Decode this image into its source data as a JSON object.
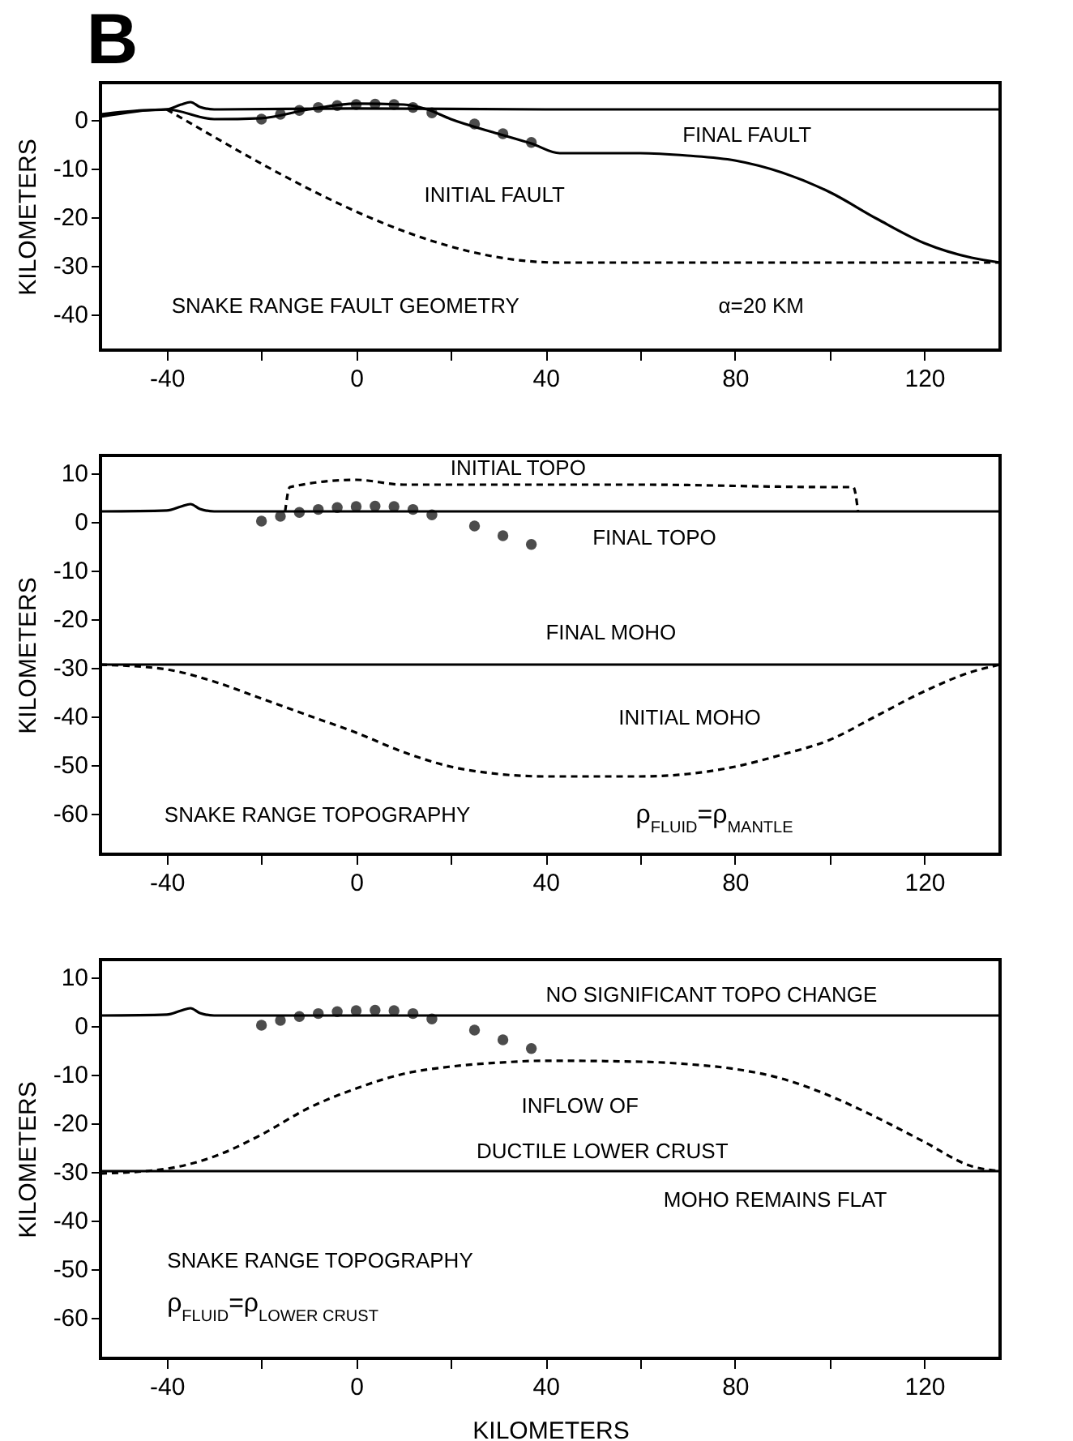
{
  "chart_data": [
    {
      "type": "line",
      "title": "B",
      "ylabel": "KILOMETERS",
      "xlim": [
        -54,
        136
      ],
      "ylim": [
        -47.5,
        7.5
      ],
      "xticks": [
        -40,
        {
          "value": -20,
          "label": null
        },
        0,
        {
          "value": 20,
          "label": null
        },
        40,
        {
          "value": 60,
          "label": null
        },
        80,
        {
          "value": 100,
          "label": null
        },
        120
      ],
      "yticks": [
        0,
        -10,
        -20,
        -30,
        -40
      ],
      "grid": false,
      "series": [
        {
          "type": "line",
          "color": "#000000",
          "line_style": "solid",
          "x": [
            -54,
            -45,
            -40,
            -37,
            -35,
            -33,
            -30,
            0,
            40,
            80,
            136
          ],
          "values": [
            1,
            1.8,
            2,
            3,
            3.5,
            2.5,
            2,
            2.2,
            2,
            2,
            2
          ]
        },
        {
          "type": "line",
          "name": "FINAL FAULT",
          "color": "#000000",
          "line_style": "solid",
          "x": [
            -54,
            -40,
            -30,
            -20,
            -10,
            0,
            10,
            15,
            20,
            30,
            37,
            43,
            60,
            70,
            80,
            90,
            100,
            110,
            120,
            130,
            136
          ],
          "values": [
            0.5,
            2,
            0,
            0.2,
            2,
            3.2,
            3,
            2,
            0,
            -3,
            -5,
            -7,
            -7,
            -7.5,
            -8.5,
            -11,
            -15,
            -20.5,
            -25.5,
            -28.5,
            -29.5
          ]
        },
        {
          "type": "line",
          "name": "INITIAL FAULT",
          "color": "#000000",
          "line_style": "dashed",
          "x": [
            -40,
            43,
            136
          ],
          "values": [
            2,
            -29.5,
            -29.5
          ]
        },
        {
          "type": "scatter",
          "color": "#000000",
          "marker": "circle",
          "x": [
            -20,
            -16,
            -12,
            -8,
            -4,
            0,
            4,
            8,
            12,
            16,
            25,
            31,
            37
          ],
          "values": [
            0,
            1,
            1.8,
            2.4,
            2.8,
            3,
            3.1,
            3,
            2.4,
            1.3,
            -1,
            -3,
            -4.8
          ]
        }
      ],
      "annotations": [
        "SNAKE RANGE FAULT GEOMETRY",
        "α=20 KM"
      ]
    },
    {
      "type": "line",
      "ylabel": "KILOMETERS",
      "xlim": [
        -54,
        136
      ],
      "ylim": [
        -68.5,
        13.5
      ],
      "xticks": [
        -40,
        {
          "value": -20,
          "label": null
        },
        0,
        {
          "value": 20,
          "label": null
        },
        40,
        {
          "value": 60,
          "label": null
        },
        80,
        {
          "value": 100,
          "label": null
        },
        120
      ],
      "yticks": [
        10,
        0,
        -10,
        -20,
        -30,
        -40,
        -50,
        -60
      ],
      "grid": false,
      "series": [
        {
          "type": "line",
          "name": "FINAL TOPO",
          "color": "#000000",
          "line_style": "solid",
          "x": [
            -54,
            -40,
            -37,
            -35,
            -33,
            -30,
            0,
            136
          ],
          "values": [
            2,
            2.2,
            3,
            3.5,
            2.5,
            2,
            2,
            2
          ]
        },
        {
          "type": "line",
          "name": "INITIAL TOPO",
          "color": "#000000",
          "line_style": "dashed",
          "x": [
            -15,
            -14,
            0,
            10,
            40,
            60,
            100,
            105,
            106
          ],
          "values": [
            2,
            7,
            8.5,
            7.5,
            7.5,
            7.5,
            7,
            7,
            2
          ]
        },
        {
          "type": "line",
          "name": "FINAL MOHO",
          "color": "#000000",
          "line_style": "solid",
          "x": [
            -54,
            136
          ],
          "values": [
            -29.5,
            -29.5
          ]
        },
        {
          "type": "line",
          "name": "INITIAL MOHO",
          "color": "#000000",
          "line_style": "dashed",
          "x": [
            -54,
            -40,
            -30,
            -20,
            -10,
            0,
            10,
            20,
            30,
            40,
            60,
            70,
            80,
            90,
            100,
            110,
            120,
            130,
            136
          ],
          "values": [
            -29.5,
            -30.5,
            -33,
            -36.5,
            -40,
            -43.5,
            -47.5,
            -50.5,
            -52,
            -52.5,
            -52.5,
            -52,
            -50.5,
            -48,
            -45,
            -40,
            -35,
            -31,
            -29.5
          ]
        },
        {
          "type": "scatter",
          "color": "#000000",
          "marker": "circle",
          "x": [
            -20,
            -16,
            -12,
            -8,
            -4,
            0,
            4,
            8,
            12,
            16,
            25,
            31,
            37
          ],
          "values": [
            0,
            1,
            1.8,
            2.4,
            2.8,
            3,
            3.1,
            3,
            2.4,
            1.3,
            -1,
            -3,
            -4.8
          ]
        }
      ],
      "annotations": [
        "SNAKE RANGE TOPOGRAPHY",
        "ρ$_{FLUID}$=ρ$_{MANTLE}$"
      ]
    },
    {
      "type": "line",
      "xlabel": "KILOMETERS",
      "ylabel": "KILOMETERS",
      "xlim": [
        -54,
        136
      ],
      "ylim": [
        -68.5,
        13.5
      ],
      "xticks": [
        -40,
        {
          "value": -20,
          "label": null
        },
        0,
        {
          "value": 20,
          "label": null
        },
        40,
        {
          "value": 60,
          "label": null
        },
        80,
        {
          "value": 100,
          "label": null
        },
        120
      ],
      "yticks": [
        10,
        0,
        -10,
        -20,
        -30,
        -40,
        -50,
        -60
      ],
      "grid": false,
      "series": [
        {
          "type": "line",
          "color": "#000000",
          "line_style": "solid",
          "x": [
            -54,
            -40,
            -37,
            -35,
            -33,
            -30,
            0,
            136
          ],
          "values": [
            2,
            2.2,
            3,
            3.5,
            2.5,
            2,
            2,
            2
          ]
        },
        {
          "type": "line",
          "color": "#000000",
          "line_style": "solid",
          "x": [
            -54,
            136
          ],
          "values": [
            -30,
            -30
          ]
        },
        {
          "type": "line",
          "color": "#000000",
          "line_style": "dashed",
          "x": [
            -54,
            -40,
            -30,
            -20,
            -10,
            0,
            10,
            20,
            30,
            40,
            60,
            70,
            80,
            90,
            100,
            110,
            120,
            130,
            136
          ],
          "values": [
            -30.5,
            -29.5,
            -27,
            -22.5,
            -17,
            -13,
            -10,
            -8.5,
            -7.7,
            -7.3,
            -7.5,
            -8,
            -9,
            -11,
            -14.5,
            -19,
            -24,
            -29,
            -30
          ]
        },
        {
          "type": "scatter",
          "color": "#000000",
          "marker": "circle",
          "x": [
            -20,
            -16,
            -12,
            -8,
            -4,
            0,
            4,
            8,
            12,
            16,
            25,
            31,
            37
          ],
          "values": [
            0,
            1,
            1.8,
            2.4,
            2.8,
            3,
            3.1,
            3,
            2.4,
            1.3,
            -1,
            -3,
            -4.8
          ]
        }
      ],
      "annotations": [
        "NO SIGNIFICANT TOPO CHANGE",
        "INFLOW OF",
        "DUCTILE LOWER CRUST",
        "MOHO REMAINS FLAT",
        "SNAKE RANGE TOPOGRAPHY",
        "ρ$_{FLUID}$=ρ$_{LOWER CRUST}$"
      ]
    }
  ]
}
